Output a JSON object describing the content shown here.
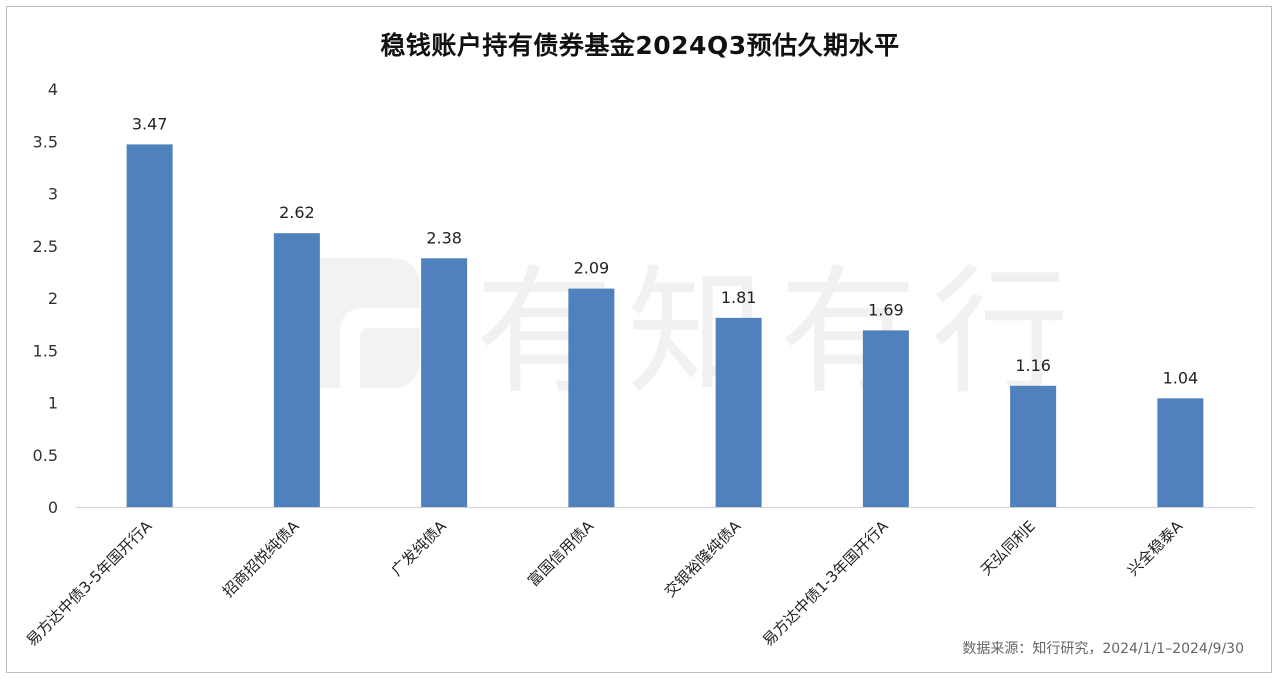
{
  "chart_data": {
    "type": "bar",
    "title": "稳钱账户持有债券基金2024Q3预估久期水平",
    "categories": [
      "易方达中债3-5年国开行A",
      "招商招悦纯债A",
      "广发纯债A",
      "富国信用债A",
      "交银裕隆纯债A",
      "易方达中债1-3年国开行A",
      "天弘同利E",
      "兴全稳泰A"
    ],
    "values": [
      3.47,
      2.62,
      2.38,
      2.09,
      1.81,
      1.69,
      1.16,
      1.04
    ],
    "value_labels": [
      "3.47",
      "2.62",
      "2.38",
      "2.09",
      "1.81",
      "1.69",
      "1.16",
      "1.04"
    ],
    "ylim": [
      0,
      4
    ],
    "yticks": [
      "0",
      "0.5",
      "1",
      "1.5",
      "2",
      "2.5",
      "3",
      "3.5",
      "4"
    ],
    "bar_color": "#4f81bd",
    "grid": false
  },
  "watermark": {
    "text": "有知有行"
  },
  "source": "数据来源：知行研究，2024/1/1–2024/9/30"
}
